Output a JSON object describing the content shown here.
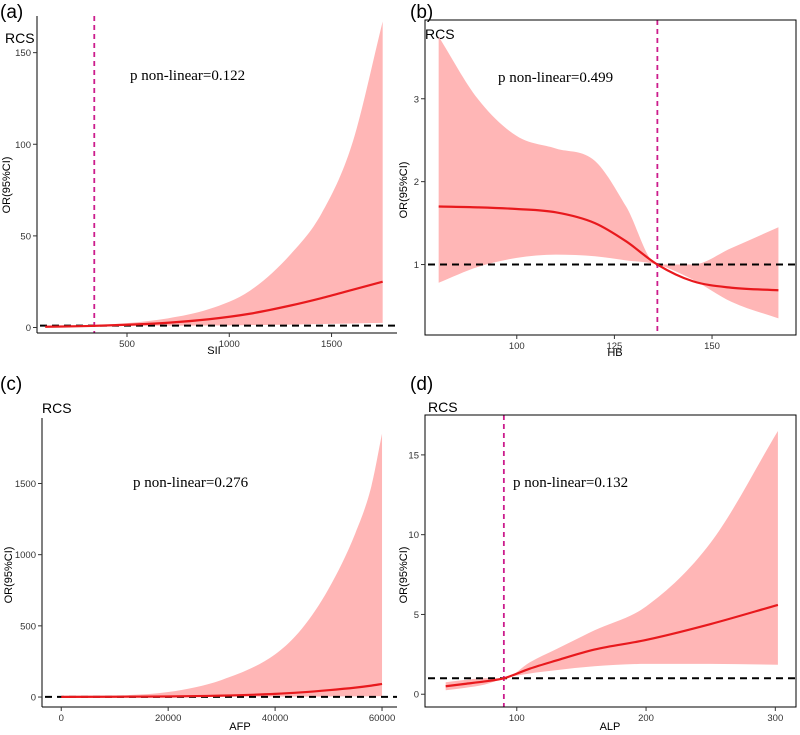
{
  "colors": {
    "band": "#ffb6b6",
    "curve": "#e8191d",
    "ref_line": "#000000",
    "vline": "#cc1c8c"
  },
  "chart_data": [
    {
      "id": "a",
      "type": "line",
      "panel_label": "(a)",
      "title": "RCS",
      "xlabel": "SII",
      "ylabel": "OR(95%CI)",
      "annotation": "p non-linear=0.122",
      "xlim": [
        60,
        1820
      ],
      "ylim": [
        -3,
        170
      ],
      "xticks": [
        500,
        1000,
        1500
      ],
      "xtick_labels": [
        "500",
        "1000",
        "1500"
      ],
      "yticks": [
        0,
        50,
        100,
        150
      ],
      "ytick_labels": [
        "0",
        "50",
        "100",
        "150"
      ],
      "ref_y": 1,
      "ref_x": 340,
      "x": [
        100,
        300,
        500,
        700,
        900,
        1100,
        1300,
        1450,
        1600,
        1750
      ],
      "or": [
        0.4,
        0.8,
        1.5,
        2.6,
        4.5,
        7.5,
        12.0,
        16.0,
        20.5,
        25.0
      ],
      "lower": [
        0.2,
        0.6,
        0.9,
        1.0,
        1.1,
        1.3,
        1.6,
        1.9,
        2.2,
        2.5
      ],
      "upper": [
        0.8,
        1.1,
        2.4,
        5.0,
        10.0,
        20.0,
        40.0,
        62.0,
        100.0,
        167.0
      ]
    },
    {
      "id": "b",
      "type": "line",
      "panel_label": "(b)",
      "title": "RCS",
      "xlabel": "HB",
      "ylabel": "OR(95%CI)",
      "annotation": "p non-linear=0.499",
      "xlim": [
        76.5,
        171.5
      ],
      "ylim": [
        0.15,
        3.95
      ],
      "xticks": [
        100,
        125,
        150
      ],
      "xtick_labels": [
        "100",
        "125",
        "150"
      ],
      "yticks": [
        1,
        2,
        3
      ],
      "ytick_labels": [
        "1",
        "2",
        "3"
      ],
      "ref_y": 1,
      "ref_x": 136,
      "x": [
        80,
        90,
        100,
        110,
        120,
        128,
        136,
        145,
        155,
        167
      ],
      "or": [
        1.7,
        1.69,
        1.67,
        1.63,
        1.5,
        1.28,
        1.0,
        0.8,
        0.72,
        0.69
      ],
      "lower": [
        0.78,
        0.97,
        1.08,
        1.12,
        1.1,
        1.05,
        1.0,
        0.82,
        0.55,
        0.35
      ],
      "upper": [
        3.75,
        3.0,
        2.55,
        2.4,
        2.25,
        1.7,
        1.0,
        1.0,
        1.2,
        1.45
      ]
    },
    {
      "id": "c",
      "type": "line",
      "panel_label": "(c)",
      "title": "RCS",
      "xlabel": "AFP",
      "ylabel": "OR(95%CI)",
      "annotation": "p non-linear=0.276",
      "xlim": [
        -3600,
        62800
      ],
      "ylim": [
        -70,
        1960
      ],
      "xticks": [
        0,
        20000,
        40000,
        60000
      ],
      "xtick_labels": [
        "0",
        "20000",
        "40000",
        "60000"
      ],
      "yticks": [
        0,
        500,
        1000,
        1500
      ],
      "ytick_labels": [
        "0",
        "500",
        "1000",
        "1500"
      ],
      "ref_y": 1,
      "ref_x": null,
      "x": [
        0,
        10000,
        20000,
        30000,
        40000,
        45000,
        50000,
        55000,
        58000,
        60000
      ],
      "or": [
        1,
        2,
        4,
        10,
        22,
        33,
        48,
        66,
        80,
        92
      ],
      "lower": [
        1,
        1,
        1,
        2,
        3,
        3,
        4,
        5,
        5,
        6
      ],
      "upper": [
        1,
        10,
        35,
        120,
        300,
        480,
        760,
        1150,
        1480,
        1850
      ]
    },
    {
      "id": "d",
      "type": "line",
      "panel_label": "(d)",
      "title": "RCS",
      "xlabel": "ALP",
      "ylabel": "OR(95%CI)",
      "annotation": "p non-linear=0.132",
      "xlim": [
        29,
        316
      ],
      "ylim": [
        -0.8,
        17.5
      ],
      "xticks": [
        100,
        200,
        300
      ],
      "xtick_labels": [
        "100",
        "200",
        "300"
      ],
      "yticks": [
        0,
        5,
        10,
        15
      ],
      "ytick_labels": [
        "0",
        "5",
        "10",
        "15"
      ],
      "ref_y": 1,
      "ref_x": 90,
      "x": [
        45,
        60,
        75,
        90,
        110,
        130,
        160,
        200,
        250,
        302
      ],
      "or": [
        0.5,
        0.65,
        0.8,
        1.0,
        1.6,
        2.1,
        2.8,
        3.4,
        4.4,
        5.6
      ],
      "lower": [
        0.25,
        0.4,
        0.6,
        1.0,
        1.3,
        1.5,
        1.75,
        1.9,
        1.9,
        1.85
      ],
      "upper": [
        0.75,
        0.9,
        1.0,
        1.0,
        2.0,
        2.8,
        4.0,
        5.5,
        9.5,
        16.5
      ]
    }
  ]
}
